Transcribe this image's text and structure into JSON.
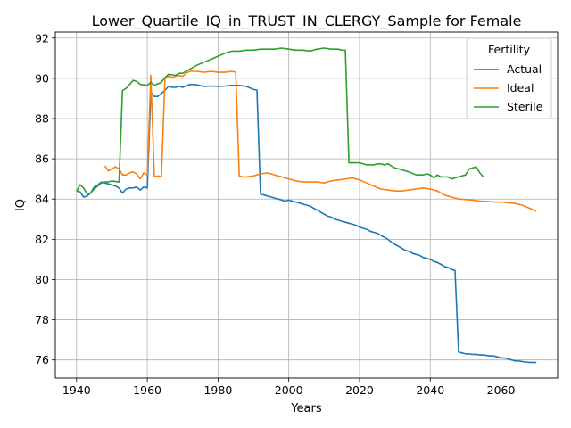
{
  "chart_data": {
    "type": "line",
    "title": "Lower_Quartile_IQ_in_TRUST_IN_CLERGY_Sample for Female",
    "xlabel": "Years",
    "ylabel": "IQ",
    "xlim": [
      1934,
      2076
    ],
    "ylim": [
      75.1,
      92.3
    ],
    "xticks": [
      1940,
      1960,
      1980,
      2000,
      2020,
      2040,
      2060
    ],
    "yticks": [
      76,
      78,
      80,
      82,
      84,
      86,
      88,
      90,
      92
    ],
    "grid": true,
    "legend": {
      "title": "Fertility",
      "placement": "top-right"
    },
    "series": [
      {
        "name": "Actual",
        "color": "#1f77b4",
        "points": [
          [
            1940,
            84.4
          ],
          [
            1941,
            84.35
          ],
          [
            1942,
            84.1
          ],
          [
            1943,
            84.15
          ],
          [
            1944,
            84.3
          ],
          [
            1945,
            84.6
          ],
          [
            1946,
            84.7
          ],
          [
            1947,
            84.85
          ],
          [
            1948,
            84.8
          ],
          [
            1949,
            84.75
          ],
          [
            1950,
            84.7
          ],
          [
            1951,
            84.65
          ],
          [
            1952,
            84.55
          ],
          [
            1953,
            84.3
          ],
          [
            1954,
            84.5
          ],
          [
            1955,
            84.55
          ],
          [
            1956,
            84.55
          ],
          [
            1957,
            84.6
          ],
          [
            1958,
            84.45
          ],
          [
            1959,
            84.6
          ],
          [
            1960,
            84.55
          ],
          [
            1961,
            89.3
          ],
          [
            1962,
            89.1
          ],
          [
            1963,
            89.1
          ],
          [
            1964,
            89.25
          ],
          [
            1965,
            89.4
          ],
          [
            1966,
            89.6
          ],
          [
            1967,
            89.55
          ],
          [
            1968,
            89.55
          ],
          [
            1969,
            89.6
          ],
          [
            1970,
            89.55
          ],
          [
            1972,
            89.7
          ],
          [
            1974,
            89.68
          ],
          [
            1976,
            89.6
          ],
          [
            1978,
            89.62
          ],
          [
            1980,
            89.6
          ],
          [
            1982,
            89.62
          ],
          [
            1984,
            89.65
          ],
          [
            1986,
            89.65
          ],
          [
            1988,
            89.6
          ],
          [
            1990,
            89.45
          ],
          [
            1991,
            89.42
          ],
          [
            1992,
            84.25
          ],
          [
            1993,
            84.2
          ],
          [
            1994,
            84.15
          ],
          [
            1995,
            84.1
          ],
          [
            1996,
            84.05
          ],
          [
            1997,
            84.0
          ],
          [
            1998,
            83.95
          ],
          [
            1999,
            83.9
          ],
          [
            2000,
            83.95
          ],
          [
            2001,
            83.9
          ],
          [
            2002,
            83.85
          ],
          [
            2003,
            83.8
          ],
          [
            2004,
            83.75
          ],
          [
            2005,
            83.7
          ],
          [
            2006,
            83.65
          ],
          [
            2007,
            83.55
          ],
          [
            2008,
            83.45
          ],
          [
            2009,
            83.35
          ],
          [
            2010,
            83.25
          ],
          [
            2011,
            83.15
          ],
          [
            2012,
            83.1
          ],
          [
            2013,
            83.0
          ],
          [
            2014,
            82.95
          ],
          [
            2015,
            82.9
          ],
          [
            2016,
            82.85
          ],
          [
            2017,
            82.8
          ],
          [
            2018,
            82.75
          ],
          [
            2019,
            82.7
          ],
          [
            2020,
            82.6
          ],
          [
            2021,
            82.55
          ],
          [
            2022,
            82.5
          ],
          [
            2023,
            82.4
          ],
          [
            2024,
            82.35
          ],
          [
            2025,
            82.3
          ],
          [
            2026,
            82.2
          ],
          [
            2027,
            82.1
          ],
          [
            2028,
            82.0
          ],
          [
            2029,
            81.85
          ],
          [
            2030,
            81.75
          ],
          [
            2031,
            81.65
          ],
          [
            2032,
            81.55
          ],
          [
            2033,
            81.45
          ],
          [
            2034,
            81.4
          ],
          [
            2035,
            81.3
          ],
          [
            2036,
            81.25
          ],
          [
            2037,
            81.2
          ],
          [
            2038,
            81.1
          ],
          [
            2039,
            81.05
          ],
          [
            2040,
            81.0
          ],
          [
            2041,
            80.9
          ],
          [
            2042,
            80.85
          ],
          [
            2043,
            80.75
          ],
          [
            2044,
            80.65
          ],
          [
            2045,
            80.6
          ],
          [
            2046,
            80.5
          ],
          [
            2047,
            80.45
          ],
          [
            2048,
            76.4
          ],
          [
            2049,
            76.35
          ],
          [
            2050,
            76.3
          ],
          [
            2051,
            76.3
          ],
          [
            2052,
            76.28
          ],
          [
            2053,
            76.28
          ],
          [
            2054,
            76.25
          ],
          [
            2055,
            76.25
          ],
          [
            2056,
            76.22
          ],
          [
            2057,
            76.2
          ],
          [
            2058,
            76.2
          ],
          [
            2059,
            76.15
          ],
          [
            2060,
            76.1
          ],
          [
            2061,
            76.1
          ],
          [
            2062,
            76.05
          ],
          [
            2063,
            76.0
          ],
          [
            2064,
            75.95
          ],
          [
            2065,
            75.95
          ],
          [
            2066,
            75.92
          ],
          [
            2067,
            75.9
          ],
          [
            2068,
            75.88
          ],
          [
            2069,
            75.88
          ],
          [
            2070,
            75.87
          ]
        ]
      },
      {
        "name": "Ideal",
        "color": "#ff7f0e",
        "points": [
          [
            1948,
            85.65
          ],
          [
            1949,
            85.4
          ],
          [
            1950,
            85.5
          ],
          [
            1951,
            85.6
          ],
          [
            1952,
            85.5
          ],
          [
            1953,
            85.2
          ],
          [
            1954,
            85.2
          ],
          [
            1955,
            85.3
          ],
          [
            1956,
            85.35
          ],
          [
            1957,
            85.25
          ],
          [
            1958,
            85.0
          ],
          [
            1959,
            85.3
          ],
          [
            1960,
            85.2
          ],
          [
            1961,
            90.15
          ],
          [
            1962,
            85.1
          ],
          [
            1963,
            85.15
          ],
          [
            1964,
            85.1
          ],
          [
            1965,
            90.0
          ],
          [
            1966,
            90.1
          ],
          [
            1967,
            90.05
          ],
          [
            1968,
            90.1
          ],
          [
            1969,
            90.15
          ],
          [
            1970,
            90.1
          ],
          [
            1971,
            90.25
          ],
          [
            1972,
            90.35
          ],
          [
            1974,
            90.35
          ],
          [
            1976,
            90.3
          ],
          [
            1978,
            90.35
          ],
          [
            1980,
            90.3
          ],
          [
            1982,
            90.3
          ],
          [
            1984,
            90.35
          ],
          [
            1985,
            90.3
          ],
          [
            1986,
            85.15
          ],
          [
            1987,
            85.1
          ],
          [
            1988,
            85.1
          ],
          [
            1990,
            85.15
          ],
          [
            1992,
            85.25
          ],
          [
            1994,
            85.3
          ],
          [
            1996,
            85.2
          ],
          [
            1998,
            85.1
          ],
          [
            2000,
            85.0
          ],
          [
            2002,
            84.9
          ],
          [
            2004,
            84.85
          ],
          [
            2006,
            84.85
          ],
          [
            2008,
            84.85
          ],
          [
            2010,
            84.8
          ],
          [
            2012,
            84.9
          ],
          [
            2014,
            84.95
          ],
          [
            2016,
            85.0
          ],
          [
            2018,
            85.05
          ],
          [
            2020,
            84.95
          ],
          [
            2022,
            84.8
          ],
          [
            2024,
            84.65
          ],
          [
            2026,
            84.5
          ],
          [
            2028,
            84.45
          ],
          [
            2030,
            84.4
          ],
          [
            2032,
            84.4
          ],
          [
            2034,
            84.45
          ],
          [
            2036,
            84.5
          ],
          [
            2038,
            84.55
          ],
          [
            2040,
            84.5
          ],
          [
            2042,
            84.4
          ],
          [
            2044,
            84.2
          ],
          [
            2046,
            84.1
          ],
          [
            2048,
            84.0
          ],
          [
            2050,
            83.98
          ],
          [
            2052,
            83.95
          ],
          [
            2054,
            83.9
          ],
          [
            2056,
            83.88
          ],
          [
            2058,
            83.85
          ],
          [
            2060,
            83.85
          ],
          [
            2062,
            83.82
          ],
          [
            2064,
            83.78
          ],
          [
            2066,
            83.7
          ],
          [
            2068,
            83.55
          ],
          [
            2070,
            83.4
          ]
        ]
      },
      {
        "name": "Sterile",
        "color": "#2ca02c",
        "points": [
          [
            1940,
            84.4
          ],
          [
            1941,
            84.7
          ],
          [
            1942,
            84.55
          ],
          [
            1943,
            84.25
          ],
          [
            1944,
            84.3
          ],
          [
            1945,
            84.5
          ],
          [
            1946,
            84.65
          ],
          [
            1947,
            84.8
          ],
          [
            1948,
            84.85
          ],
          [
            1949,
            84.85
          ],
          [
            1950,
            84.9
          ],
          [
            1952,
            84.85
          ],
          [
            1953,
            89.4
          ],
          [
            1954,
            89.5
          ],
          [
            1955,
            89.7
          ],
          [
            1956,
            89.9
          ],
          [
            1957,
            89.85
          ],
          [
            1958,
            89.7
          ],
          [
            1960,
            89.65
          ],
          [
            1961,
            89.8
          ],
          [
            1962,
            89.65
          ],
          [
            1964,
            89.8
          ],
          [
            1965,
            90.05
          ],
          [
            1966,
            90.2
          ],
          [
            1968,
            90.15
          ],
          [
            1969,
            90.25
          ],
          [
            1970,
            90.25
          ],
          [
            1972,
            90.45
          ],
          [
            1974,
            90.65
          ],
          [
            1976,
            90.8
          ],
          [
            1978,
            90.95
          ],
          [
            1980,
            91.1
          ],
          [
            1982,
            91.25
          ],
          [
            1984,
            91.35
          ],
          [
            1986,
            91.35
          ],
          [
            1988,
            91.4
          ],
          [
            1990,
            91.4
          ],
          [
            1992,
            91.45
          ],
          [
            1994,
            91.45
          ],
          [
            1996,
            91.45
          ],
          [
            1998,
            91.5
          ],
          [
            2000,
            91.45
          ],
          [
            2002,
            91.4
          ],
          [
            2004,
            91.4
          ],
          [
            2006,
            91.35
          ],
          [
            2008,
            91.45
          ],
          [
            2010,
            91.5
          ],
          [
            2012,
            91.45
          ],
          [
            2014,
            91.45
          ],
          [
            2015,
            91.4
          ],
          [
            2016,
            91.4
          ],
          [
            2017,
            85.8
          ],
          [
            2018,
            85.8
          ],
          [
            2020,
            85.8
          ],
          [
            2022,
            85.7
          ],
          [
            2024,
            85.7
          ],
          [
            2025,
            85.75
          ],
          [
            2026,
            85.75
          ],
          [
            2027,
            85.7
          ],
          [
            2028,
            85.75
          ],
          [
            2030,
            85.55
          ],
          [
            2032,
            85.45
          ],
          [
            2034,
            85.35
          ],
          [
            2036,
            85.2
          ],
          [
            2038,
            85.2
          ],
          [
            2039,
            85.25
          ],
          [
            2040,
            85.2
          ],
          [
            2041,
            85.05
          ],
          [
            2042,
            85.2
          ],
          [
            2043,
            85.1
          ],
          [
            2044,
            85.1
          ],
          [
            2045,
            85.1
          ],
          [
            2046,
            85.0
          ],
          [
            2048,
            85.1
          ],
          [
            2050,
            85.2
          ],
          [
            2051,
            85.5
          ],
          [
            2052,
            85.55
          ],
          [
            2053,
            85.6
          ],
          [
            2054,
            85.3
          ],
          [
            2055,
            85.1
          ]
        ]
      }
    ]
  }
}
